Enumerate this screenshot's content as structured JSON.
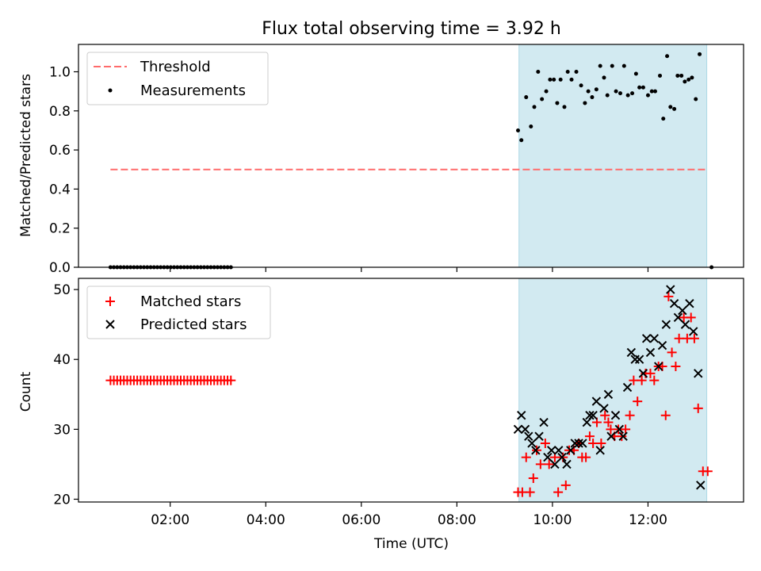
{
  "figure": {
    "title": "Flux total observing time = 3.92 h",
    "xlabel": "Time (UTC)"
  },
  "chart_data": [
    {
      "type": "scatter",
      "panel": "top",
      "ylabel": "Matched/Predicted stars",
      "x_unit": "hours UTC",
      "xlim": [
        0.08,
        14.0
      ],
      "ylim": [
        0.0,
        1.14
      ],
      "yticks": [
        0.0,
        0.2,
        0.4,
        0.6,
        0.8,
        1.0
      ],
      "yticklabels": [
        "0.0",
        "0.2",
        "0.4",
        "0.6",
        "0.8",
        "1.0"
      ],
      "shaded_x": [
        9.3,
        13.23
      ],
      "shade_color": "#add8e6",
      "threshold": {
        "name": "Threshold",
        "value": 0.5,
        "x": [
          0.75,
          13.23
        ],
        "color": "#ff6b6b"
      },
      "legend": {
        "loc": "upper-left",
        "entries": [
          "Threshold",
          "Measurements"
        ]
      },
      "series": [
        {
          "name": "Measurements",
          "marker": "dot",
          "color": "#000000",
          "points": [
            [
              0.75,
              0
            ],
            [
              0.82,
              0
            ],
            [
              0.89,
              0
            ],
            [
              0.96,
              0
            ],
            [
              1.03,
              0
            ],
            [
              1.1,
              0
            ],
            [
              1.17,
              0
            ],
            [
              1.24,
              0
            ],
            [
              1.31,
              0
            ],
            [
              1.38,
              0
            ],
            [
              1.45,
              0
            ],
            [
              1.52,
              0
            ],
            [
              1.59,
              0
            ],
            [
              1.66,
              0
            ],
            [
              1.73,
              0
            ],
            [
              1.8,
              0
            ],
            [
              1.87,
              0
            ],
            [
              1.94,
              0
            ],
            [
              2.01,
              0
            ],
            [
              2.08,
              0
            ],
            [
              2.15,
              0
            ],
            [
              2.22,
              0
            ],
            [
              2.29,
              0
            ],
            [
              2.36,
              0
            ],
            [
              2.43,
              0
            ],
            [
              2.5,
              0
            ],
            [
              2.57,
              0
            ],
            [
              2.64,
              0
            ],
            [
              2.71,
              0
            ],
            [
              2.78,
              0
            ],
            [
              2.85,
              0
            ],
            [
              2.92,
              0
            ],
            [
              2.99,
              0
            ],
            [
              3.06,
              0
            ],
            [
              3.13,
              0
            ],
            [
              3.2,
              0
            ],
            [
              3.27,
              0
            ],
            [
              9.28,
              0.7
            ],
            [
              9.35,
              0.65
            ],
            [
              9.45,
              0.87
            ],
            [
              9.55,
              0.72
            ],
            [
              9.62,
              0.82
            ],
            [
              9.7,
              1.0
            ],
            [
              9.78,
              0.86
            ],
            [
              9.87,
              0.9
            ],
            [
              9.95,
              0.96
            ],
            [
              10.03,
              0.96
            ],
            [
              10.1,
              0.84
            ],
            [
              10.17,
              0.96
            ],
            [
              10.25,
              0.82
            ],
            [
              10.32,
              1.0
            ],
            [
              10.4,
              0.96
            ],
            [
              10.5,
              1.0
            ],
            [
              10.6,
              0.93
            ],
            [
              10.68,
              0.84
            ],
            [
              10.75,
              0.9
            ],
            [
              10.83,
              0.87
            ],
            [
              10.92,
              0.91
            ],
            [
              11.0,
              1.03
            ],
            [
              11.08,
              0.97
            ],
            [
              11.15,
              0.88
            ],
            [
              11.25,
              1.03
            ],
            [
              11.33,
              0.9
            ],
            [
              11.42,
              0.89
            ],
            [
              11.5,
              1.03
            ],
            [
              11.58,
              0.88
            ],
            [
              11.67,
              0.89
            ],
            [
              11.75,
              0.99
            ],
            [
              11.82,
              0.92
            ],
            [
              11.9,
              0.92
            ],
            [
              12.0,
              0.88
            ],
            [
              12.08,
              0.9
            ],
            [
              12.15,
              0.9
            ],
            [
              12.25,
              0.98
            ],
            [
              12.32,
              0.76
            ],
            [
              12.4,
              1.08
            ],
            [
              12.47,
              0.82
            ],
            [
              12.55,
              0.81
            ],
            [
              12.62,
              0.98
            ],
            [
              12.7,
              0.98
            ],
            [
              12.77,
              0.95
            ],
            [
              12.85,
              0.96
            ],
            [
              12.92,
              0.97
            ],
            [
              13.0,
              0.86
            ],
            [
              13.08,
              1.09
            ],
            [
              13.33,
              0.0
            ]
          ]
        }
      ]
    },
    {
      "type": "scatter",
      "panel": "bottom",
      "ylabel": "Count",
      "xlabel": "Time (UTC)",
      "x_unit": "hours UTC",
      "xlim": [
        0.08,
        14.0
      ],
      "ylim": [
        19.6,
        51.6
      ],
      "yticks": [
        20,
        30,
        40,
        50
      ],
      "yticklabels": [
        "20",
        "30",
        "40",
        "50"
      ],
      "xticks": [
        2,
        4,
        6,
        8,
        10,
        12
      ],
      "xticklabels": [
        "02:00",
        "04:00",
        "06:00",
        "08:00",
        "10:00",
        "12:00"
      ],
      "shaded_x": [
        9.3,
        13.23
      ],
      "shade_color": "#add8e6",
      "legend": {
        "loc": "upper-left",
        "entries": [
          "Matched stars",
          "Predicted stars"
        ]
      },
      "series": [
        {
          "name": "Matched stars",
          "marker": "plus",
          "color": "#ff0000",
          "points": [
            [
              0.75,
              37
            ],
            [
              0.82,
              37
            ],
            [
              0.89,
              37
            ],
            [
              0.96,
              37
            ],
            [
              1.03,
              37
            ],
            [
              1.1,
              37
            ],
            [
              1.17,
              37
            ],
            [
              1.24,
              37
            ],
            [
              1.31,
              37
            ],
            [
              1.38,
              37
            ],
            [
              1.45,
              37
            ],
            [
              1.52,
              37
            ],
            [
              1.59,
              37
            ],
            [
              1.66,
              37
            ],
            [
              1.73,
              37
            ],
            [
              1.8,
              37
            ],
            [
              1.87,
              37
            ],
            [
              1.94,
              37
            ],
            [
              2.01,
              37
            ],
            [
              2.08,
              37
            ],
            [
              2.15,
              37
            ],
            [
              2.22,
              37
            ],
            [
              2.29,
              37
            ],
            [
              2.36,
              37
            ],
            [
              2.43,
              37
            ],
            [
              2.5,
              37
            ],
            [
              2.57,
              37
            ],
            [
              2.64,
              37
            ],
            [
              2.71,
              37
            ],
            [
              2.78,
              37
            ],
            [
              2.85,
              37
            ],
            [
              2.92,
              37
            ],
            [
              2.99,
              37
            ],
            [
              3.06,
              37
            ],
            [
              3.13,
              37
            ],
            [
              3.2,
              37
            ],
            [
              3.27,
              37
            ],
            [
              9.28,
              21
            ],
            [
              9.37,
              21
            ],
            [
              9.45,
              26
            ],
            [
              9.53,
              21
            ],
            [
              9.6,
              23
            ],
            [
              9.67,
              27
            ],
            [
              9.75,
              25
            ],
            [
              9.85,
              28
            ],
            [
              9.93,
              25
            ],
            [
              10.05,
              26
            ],
            [
              10.12,
              21
            ],
            [
              10.22,
              26
            ],
            [
              10.28,
              22
            ],
            [
              10.35,
              27
            ],
            [
              10.45,
              27
            ],
            [
              10.55,
              28
            ],
            [
              10.62,
              26
            ],
            [
              10.7,
              26
            ],
            [
              10.78,
              29
            ],
            [
              10.85,
              28
            ],
            [
              10.93,
              31
            ],
            [
              11.02,
              28
            ],
            [
              11.1,
              32
            ],
            [
              11.17,
              31
            ],
            [
              11.22,
              30
            ],
            [
              11.3,
              29
            ],
            [
              11.38,
              30
            ],
            [
              11.45,
              29
            ],
            [
              11.53,
              30
            ],
            [
              11.62,
              32
            ],
            [
              11.7,
              37
            ],
            [
              11.78,
              34
            ],
            [
              11.87,
              37
            ],
            [
              11.95,
              38
            ],
            [
              12.05,
              38
            ],
            [
              12.13,
              37
            ],
            [
              12.22,
              39
            ],
            [
              12.3,
              39
            ],
            [
              12.37,
              32
            ],
            [
              12.43,
              49
            ],
            [
              12.5,
              41
            ],
            [
              12.58,
              39
            ],
            [
              12.65,
              43
            ],
            [
              12.75,
              46
            ],
            [
              12.82,
              43
            ],
            [
              12.9,
              46
            ],
            [
              12.97,
              43
            ],
            [
              13.05,
              33
            ],
            [
              13.15,
              24
            ],
            [
              13.25,
              24
            ]
          ]
        },
        {
          "name": "Predicted stars",
          "marker": "x",
          "color": "#000000",
          "points": [
            [
              9.28,
              30
            ],
            [
              9.35,
              32
            ],
            [
              9.43,
              30
            ],
            [
              9.5,
              29
            ],
            [
              9.57,
              28
            ],
            [
              9.65,
              27
            ],
            [
              9.72,
              29
            ],
            [
              9.82,
              31
            ],
            [
              9.9,
              26
            ],
            [
              9.98,
              27
            ],
            [
              10.05,
              25
            ],
            [
              10.13,
              27
            ],
            [
              10.2,
              26
            ],
            [
              10.3,
              25
            ],
            [
              10.38,
              27
            ],
            [
              10.47,
              28
            ],
            [
              10.55,
              28
            ],
            [
              10.63,
              28
            ],
            [
              10.72,
              31
            ],
            [
              10.78,
              32
            ],
            [
              10.85,
              32
            ],
            [
              10.92,
              34
            ],
            [
              11.0,
              27
            ],
            [
              11.08,
              33
            ],
            [
              11.17,
              35
            ],
            [
              11.23,
              29
            ],
            [
              11.32,
              32
            ],
            [
              11.4,
              30
            ],
            [
              11.48,
              29
            ],
            [
              11.57,
              36
            ],
            [
              11.65,
              41
            ],
            [
              11.73,
              40
            ],
            [
              11.82,
              40
            ],
            [
              11.9,
              38
            ],
            [
              11.97,
              43
            ],
            [
              12.05,
              41
            ],
            [
              12.13,
              43
            ],
            [
              12.22,
              39
            ],
            [
              12.3,
              42
            ],
            [
              12.38,
              45
            ],
            [
              12.47,
              50
            ],
            [
              12.55,
              48
            ],
            [
              12.63,
              46
            ],
            [
              12.72,
              47
            ],
            [
              12.78,
              45
            ],
            [
              12.87,
              48
            ],
            [
              12.95,
              44
            ],
            [
              13.05,
              38
            ],
            [
              13.1,
              22
            ]
          ]
        }
      ]
    }
  ]
}
